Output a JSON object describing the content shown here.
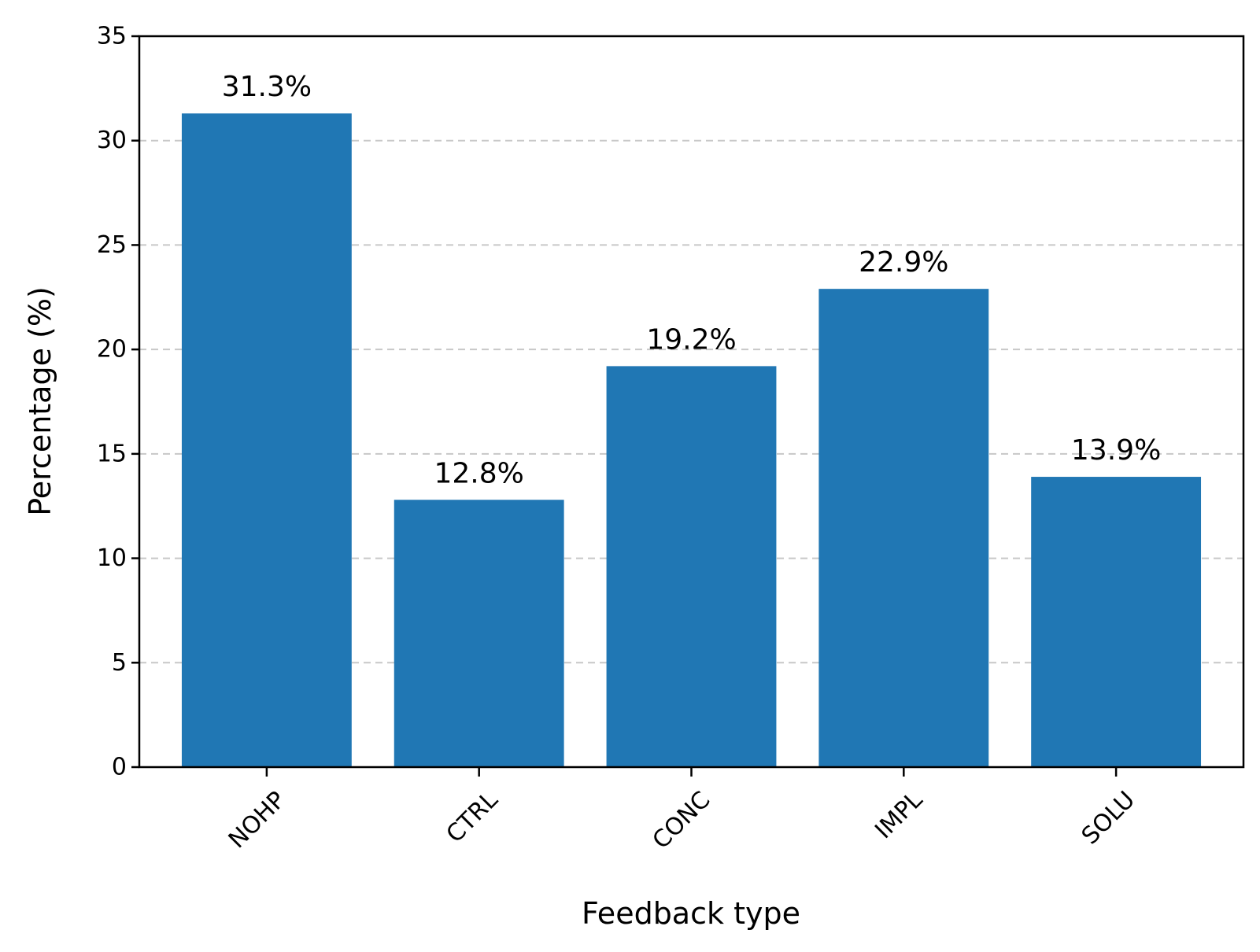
{
  "chart_data": {
    "type": "bar",
    "title": "",
    "xlabel": "Feedback type",
    "ylabel": "Percentage (%)",
    "categories": [
      "NOHP",
      "CTRL",
      "CONC",
      "IMPL",
      "SOLU"
    ],
    "values": [
      31.3,
      12.8,
      19.2,
      22.9,
      13.9
    ],
    "value_labels": [
      "31.3%",
      "12.8%",
      "19.2%",
      "22.9%",
      "13.9%"
    ],
    "ylim": [
      0,
      35
    ],
    "yticks": [
      "0",
      "5",
      "10",
      "15",
      "20",
      "25",
      "30",
      "35"
    ],
    "grid": "y-dashed",
    "x_tick_rotation_deg": 45,
    "bar_color": "#2077b4",
    "grid_color": "#c8c8c8"
  }
}
